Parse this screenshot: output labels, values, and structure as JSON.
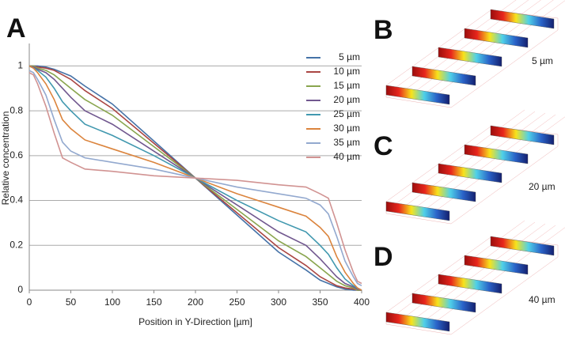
{
  "chart_data": {
    "type": "line",
    "panel_label": "A",
    "x_label": "Position in Y-Direction [µm]",
    "y_label": "Relative concentration",
    "x": [
      0,
      5,
      10,
      20,
      30,
      40,
      50,
      67,
      100,
      150,
      200,
      250,
      300,
      333,
      350,
      360,
      370,
      380,
      390,
      395,
      400
    ],
    "xlim": [
      0,
      400
    ],
    "xticks": [
      0,
      50,
      100,
      150,
      200,
      250,
      300,
      350,
      400
    ],
    "ylim": [
      0,
      1.1
    ],
    "yticks": [
      0,
      0.2,
      0.4,
      0.6,
      0.8,
      1
    ],
    "grid": true,
    "legend": "top-right",
    "series": [
      {
        "name": "5 µm",
        "color": "#4572a7",
        "values": [
          1,
          1,
          1,
          0.995,
          0.985,
          0.97,
          0.955,
          0.91,
          0.83,
          0.665,
          0.5,
          0.335,
          0.17,
          0.09,
          0.045,
          0.03,
          0.015,
          0.005,
          0,
          0,
          0
        ]
      },
      {
        "name": "10 µm",
        "color": "#aa4643",
        "values": [
          1,
          1,
          0.995,
          0.99,
          0.98,
          0.96,
          0.94,
          0.89,
          0.81,
          0.655,
          0.5,
          0.345,
          0.19,
          0.11,
          0.06,
          0.04,
          0.02,
          0.01,
          0.005,
          0,
          0
        ]
      },
      {
        "name": "15 µm",
        "color": "#89a54e",
        "values": [
          1,
          1,
          0.99,
          0.98,
          0.96,
          0.93,
          0.9,
          0.85,
          0.78,
          0.64,
          0.5,
          0.36,
          0.22,
          0.15,
          0.1,
          0.07,
          0.04,
          0.02,
          0.01,
          0,
          0
        ]
      },
      {
        "name": "20 µm",
        "color": "#71588f",
        "values": [
          1,
          0.995,
          0.985,
          0.97,
          0.94,
          0.9,
          0.86,
          0.8,
          0.74,
          0.62,
          0.5,
          0.38,
          0.26,
          0.2,
          0.14,
          0.1,
          0.06,
          0.03,
          0.015,
          0.005,
          0
        ]
      },
      {
        "name": "25 µm",
        "color": "#4198af",
        "values": [
          1,
          0.99,
          0.98,
          0.95,
          0.9,
          0.84,
          0.8,
          0.74,
          0.69,
          0.6,
          0.5,
          0.4,
          0.31,
          0.26,
          0.2,
          0.16,
          0.1,
          0.05,
          0.02,
          0.01,
          0
        ]
      },
      {
        "name": "30 µm",
        "color": "#db843d",
        "values": [
          1,
          0.99,
          0.97,
          0.92,
          0.85,
          0.76,
          0.72,
          0.67,
          0.63,
          0.57,
          0.5,
          0.43,
          0.37,
          0.33,
          0.28,
          0.24,
          0.15,
          0.08,
          0.03,
          0.01,
          0
        ]
      },
      {
        "name": "35 µm",
        "color": "#93a9cf",
        "values": [
          0.98,
          0.97,
          0.94,
          0.87,
          0.76,
          0.66,
          0.62,
          0.59,
          0.57,
          0.54,
          0.5,
          0.46,
          0.43,
          0.41,
          0.38,
          0.34,
          0.24,
          0.13,
          0.06,
          0.03,
          0.02
        ]
      },
      {
        "name": "40 µm",
        "color": "#d19392",
        "values": [
          0.97,
          0.96,
          0.92,
          0.82,
          0.7,
          0.59,
          0.57,
          0.54,
          0.53,
          0.51,
          0.5,
          0.49,
          0.47,
          0.46,
          0.43,
          0.41,
          0.3,
          0.18,
          0.08,
          0.04,
          0.03
        ]
      }
    ]
  },
  "panels": [
    {
      "label": "B",
      "caption": "5 µm"
    },
    {
      "label": "C",
      "caption": "20 µm"
    },
    {
      "label": "D",
      "caption": "40 µm"
    }
  ]
}
